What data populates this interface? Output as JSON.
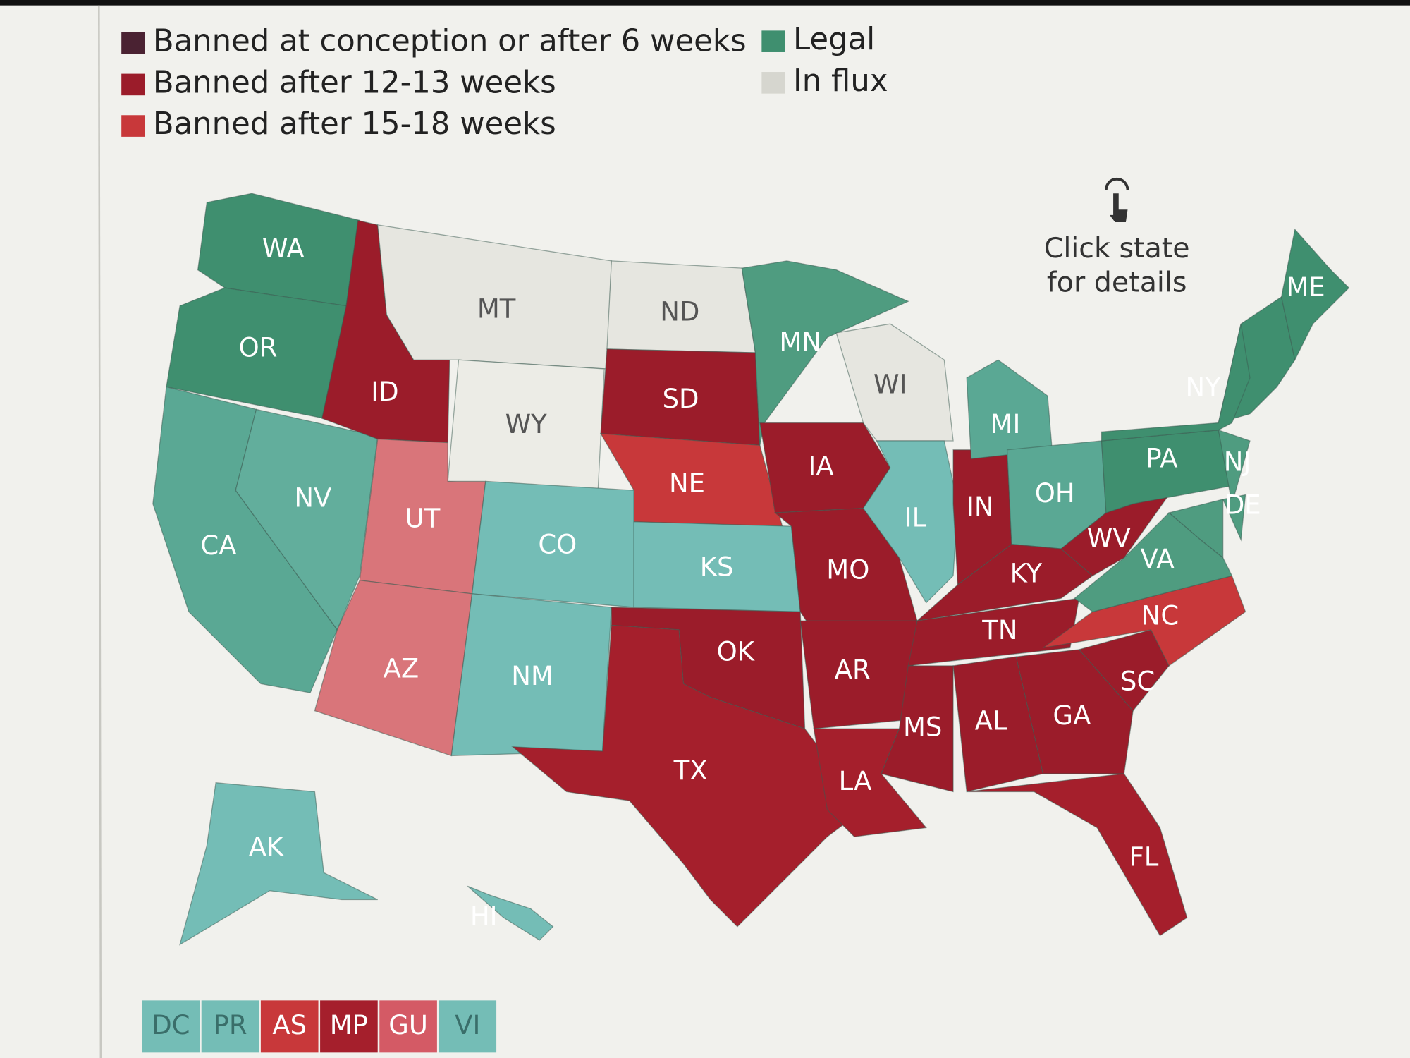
{
  "legend": [
    {
      "label": "Banned at conception or after 6 weeks",
      "color": "#4a2232"
    },
    {
      "label": "Banned after 12-13 weeks",
      "color": "#9b1c2a"
    },
    {
      "label": "Banned after 15-18 weeks",
      "color": "#c8383a"
    },
    {
      "label": "Legal",
      "color": "#3f8f6f"
    },
    {
      "label": "In flux",
      "color": "#d6d6cf"
    }
  ],
  "hint": {
    "line1": "Click state",
    "line2": "for details"
  },
  "states": [
    {
      "label": "WA",
      "color": "#3f8f6f"
    },
    {
      "label": "OR",
      "color": "#3f8f6f"
    },
    {
      "label": "CA",
      "color": "#5aa894"
    },
    {
      "label": "NV",
      "color": "#62ae9c"
    },
    {
      "label": "ID",
      "color": "#9b1c2a"
    },
    {
      "label": "MT",
      "color": "#e6e6e0"
    },
    {
      "label": "WY",
      "color": "#ececE6"
    },
    {
      "label": "UT",
      "color": "#d9757a"
    },
    {
      "label": "CO",
      "color": "#74bdb6"
    },
    {
      "label": "AZ",
      "color": "#d9757a"
    },
    {
      "label": "NM",
      "color": "#74bdb6"
    },
    {
      "label": "ND",
      "color": "#e6e6e0"
    },
    {
      "label": "SD",
      "color": "#9b1c2a"
    },
    {
      "label": "NE",
      "color": "#c8383a"
    },
    {
      "label": "KS",
      "color": "#74bdb6"
    },
    {
      "label": "OK",
      "color": "#9b1c2a"
    },
    {
      "label": "TX",
      "color": "#a51f2c"
    },
    {
      "label": "MN",
      "color": "#4f9c80"
    },
    {
      "label": "IA",
      "color": "#9b1c2a"
    },
    {
      "label": "MO",
      "color": "#9b1c2a"
    },
    {
      "label": "AR",
      "color": "#9b1c2a"
    },
    {
      "label": "LA",
      "color": "#a51f2c"
    },
    {
      "label": "WI",
      "color": "#e6e6e0"
    },
    {
      "label": "IL",
      "color": "#74bdb6"
    },
    {
      "label": "IN",
      "color": "#9b1c2a"
    },
    {
      "label": "MI",
      "color": "#5aa894"
    },
    {
      "label": "OH",
      "color": "#5aa894"
    },
    {
      "label": "KY",
      "color": "#9b1c2a"
    },
    {
      "label": "TN",
      "color": "#9b1c2a"
    },
    {
      "label": "MS",
      "color": "#9b1c2a"
    },
    {
      "label": "AL",
      "color": "#9b1c2a"
    },
    {
      "label": "GA",
      "color": "#9b1c2a"
    },
    {
      "label": "FL",
      "color": "#a51f2c"
    },
    {
      "label": "SC",
      "color": "#9b1c2a"
    },
    {
      "label": "NC",
      "color": "#c8383a"
    },
    {
      "label": "VA",
      "color": "#4f9c80"
    },
    {
      "label": "WV",
      "color": "#9b1c2a"
    },
    {
      "label": "PA",
      "color": "#3f8f6f"
    },
    {
      "label": "NY",
      "color": "#3f8f6f"
    },
    {
      "label": "NJ",
      "color": "#4f9c80"
    },
    {
      "label": "DE",
      "color": "#4f9c80"
    },
    {
      "label": "ME",
      "color": "#3f8f6f"
    },
    {
      "label": "AK",
      "color": "#74bdb6"
    },
    {
      "label": "HI",
      "color": "#74bdb6"
    }
  ],
  "territories": [
    {
      "label": "DC",
      "color": "#74bdb6"
    },
    {
      "label": "PR",
      "color": "#74bdb6"
    },
    {
      "label": "AS",
      "color": "#c8383a"
    },
    {
      "label": "MP",
      "color": "#a51f2c"
    },
    {
      "label": "GU",
      "color": "#d45a65"
    },
    {
      "label": "VI",
      "color": "#74bdb6"
    }
  ]
}
